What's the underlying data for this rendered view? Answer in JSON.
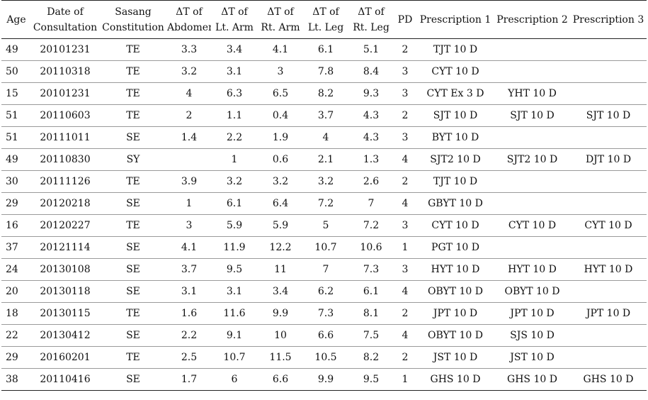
{
  "table": {
    "headers": [
      [
        "Age"
      ],
      [
        "Date of",
        "Consultation"
      ],
      [
        "Sasang",
        "Constitution"
      ],
      [
        "ΔT of",
        "Abdomen"
      ],
      [
        "ΔT of",
        "Lt. Arm"
      ],
      [
        "ΔT of",
        "Rt. Arm"
      ],
      [
        "ΔT of",
        "Lt. Leg"
      ],
      [
        "ΔT of",
        "Rt. Leg"
      ],
      [
        "PD"
      ],
      [
        "Prescription 1"
      ],
      [
        "Prescription 2"
      ],
      [
        "Prescription 3"
      ]
    ],
    "rows": [
      [
        "49",
        "20101231",
        "TE",
        "3.3",
        "3.4",
        "4.1",
        "6.1",
        "5.1",
        "2",
        "TJT 10 D",
        "",
        ""
      ],
      [
        "50",
        "20110318",
        "TE",
        "3.2",
        "3.1",
        "3",
        "7.8",
        "8.4",
        "3",
        "CYT 10 D",
        "",
        ""
      ],
      [
        "15",
        "20101231",
        "TE",
        "4",
        "6.3",
        "6.5",
        "8.2",
        "9.3",
        "3",
        "CYT Ex 3 D",
        "YHT 10 D",
        ""
      ],
      [
        "51",
        "20110603",
        "TE",
        "2",
        "1.1",
        "0.4",
        "3.7",
        "4.3",
        "2",
        "SJT 10 D",
        "SJT 10 D",
        "SJT 10 D"
      ],
      [
        "51",
        "20111011",
        "SE",
        "1.4",
        "2.2",
        "1.9",
        "4",
        "4.3",
        "3",
        "BYT 10 D",
        "",
        ""
      ],
      [
        "49",
        "20110830",
        "SY",
        "",
        "1",
        "0.6",
        "2.1",
        "1.3",
        "4",
        "SJT2 10 D",
        "SJT2 10 D",
        "DJT 10 D"
      ],
      [
        "30",
        "20111126",
        "TE",
        "3.9",
        "3.2",
        "3.2",
        "3.2",
        "2.6",
        "2",
        "TJT 10 D",
        "",
        ""
      ],
      [
        "29",
        "20120218",
        "SE",
        "1",
        "6.1",
        "6.4",
        "7.2",
        "7",
        "4",
        "GBYT 10 D",
        "",
        ""
      ],
      [
        "16",
        "20120227",
        "TE",
        "3",
        "5.9",
        "5.9",
        "5",
        "7.2",
        "3",
        "CYT 10 D",
        "CYT 10 D",
        "CYT 10 D"
      ],
      [
        "37",
        "20121114",
        "SE",
        "4.1",
        "11.9",
        "12.2",
        "10.7",
        "10.6",
        "1",
        "PGT 10 D",
        "",
        ""
      ],
      [
        "24",
        "20130108",
        "SE",
        "3.7",
        "9.5",
        "11",
        "7",
        "7.3",
        "3",
        "HYT 10 D",
        "HYT 10 D",
        "HYT 10 D"
      ],
      [
        "20",
        "20130118",
        "SE",
        "3.1",
        "3.1",
        "3.4",
        "6.2",
        "6.1",
        "4",
        "OBYT 10 D",
        "OBYT 10 D",
        ""
      ],
      [
        "18",
        "20130115",
        "TE",
        "1.6",
        "11.6",
        "9.9",
        "7.3",
        "8.1",
        "2",
        "JPT 10 D",
        "JPT 10 D",
        "JPT 10 D"
      ],
      [
        "22",
        "20130412",
        "SE",
        "2.2",
        "9.1",
        "10",
        "6.6",
        "7.5",
        "4",
        "OBYT 10 D",
        "SJS 10 D",
        ""
      ],
      [
        "29",
        "20160201",
        "TE",
        "2.5",
        "10.7",
        "11.5",
        "10.5",
        "8.2",
        "2",
        "JST 10 D",
        "JST 10 D",
        ""
      ],
      [
        "38",
        "20110416",
        "SE",
        "1.7",
        "6",
        "6.6",
        "9.9",
        "9.5",
        "1",
        "GHS 10 D",
        "GHS 10 D",
        "GHS 10 D"
      ]
    ]
  }
}
